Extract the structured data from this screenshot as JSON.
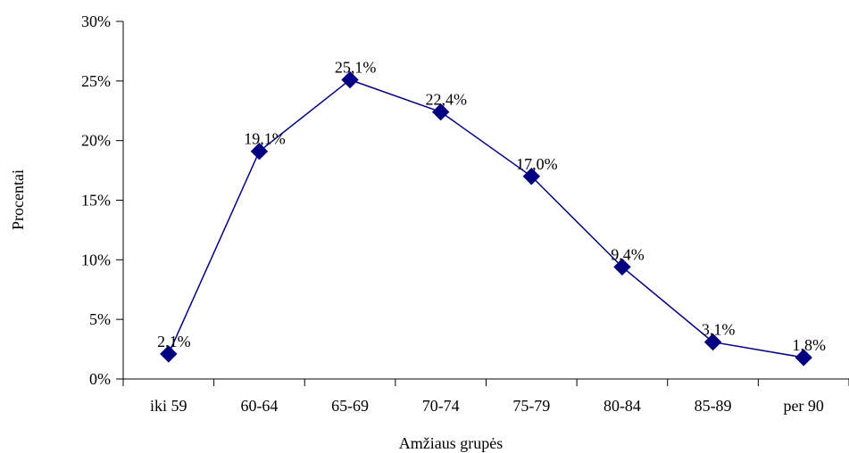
{
  "chart_data": {
    "type": "line",
    "categories": [
      "iki 59",
      "60-64",
      "65-69",
      "70-74",
      "75-79",
      "80-84",
      "85-89",
      "per 90"
    ],
    "values": [
      2.1,
      19.1,
      25.1,
      22.4,
      17.0,
      9.4,
      3.1,
      1.8
    ],
    "data_labels": [
      "2,1%",
      "19,1%",
      "25,1%",
      "22,4%",
      "17,0%",
      "9,4%",
      "3,1%",
      "1,8%"
    ],
    "y_ticks": [
      0,
      5,
      10,
      15,
      20,
      25,
      30
    ],
    "y_tick_labels": [
      "0%",
      "5%",
      "10%",
      "15%",
      "20%",
      "25%",
      "30%"
    ],
    "ylim": [
      0,
      30
    ],
    "xlabel": "Amžiaus grupės",
    "ylabel": "Procentai",
    "grid": false,
    "legend": "none",
    "series_color": "#000080",
    "marker": "diamond"
  }
}
